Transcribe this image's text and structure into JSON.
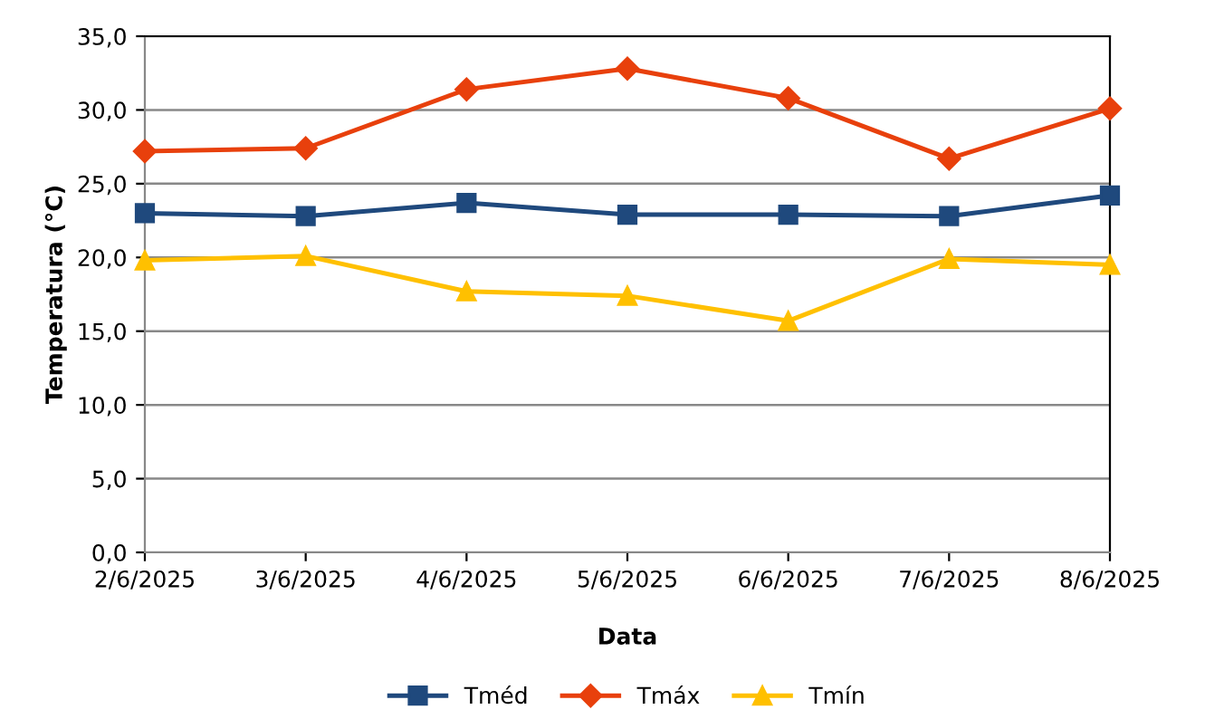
{
  "chart_data": {
    "type": "line",
    "xlabel": "Data",
    "ylabel": "Temperatura (°C)",
    "categories": [
      "2/6/2025",
      "3/6/2025",
      "4/6/2025",
      "5/6/2025",
      "6/6/2025",
      "7/6/2025",
      "8/6/2025"
    ],
    "series": [
      {
        "name": "Tméd",
        "color": "#1f497d",
        "marker": "square",
        "values": [
          23.0,
          22.8,
          23.7,
          22.9,
          22.9,
          22.8,
          24.2
        ]
      },
      {
        "name": "Tmáx",
        "color": "#e8400c",
        "marker": "diamond",
        "values": [
          27.2,
          27.4,
          31.4,
          32.8,
          30.8,
          26.7,
          30.1
        ]
      },
      {
        "name": "Tmín",
        "color": "#ffc000",
        "marker": "triangle",
        "values": [
          19.8,
          20.1,
          17.7,
          17.4,
          15.7,
          19.9,
          19.5
        ]
      }
    ],
    "ylim": [
      0,
      35
    ],
    "yticks": [
      {
        "value": 0,
        "label": "0,0"
      },
      {
        "value": 5,
        "label": "5,0"
      },
      {
        "value": 10,
        "label": "10,0"
      },
      {
        "value": 15,
        "label": "15,0"
      },
      {
        "value": 20,
        "label": "20,0"
      },
      {
        "value": 25,
        "label": "25,0"
      },
      {
        "value": 30,
        "label": "30,0"
      },
      {
        "value": 35,
        "label": "35,0"
      }
    ],
    "grid": "y",
    "legend": "bottom",
    "line_style": "solid"
  }
}
